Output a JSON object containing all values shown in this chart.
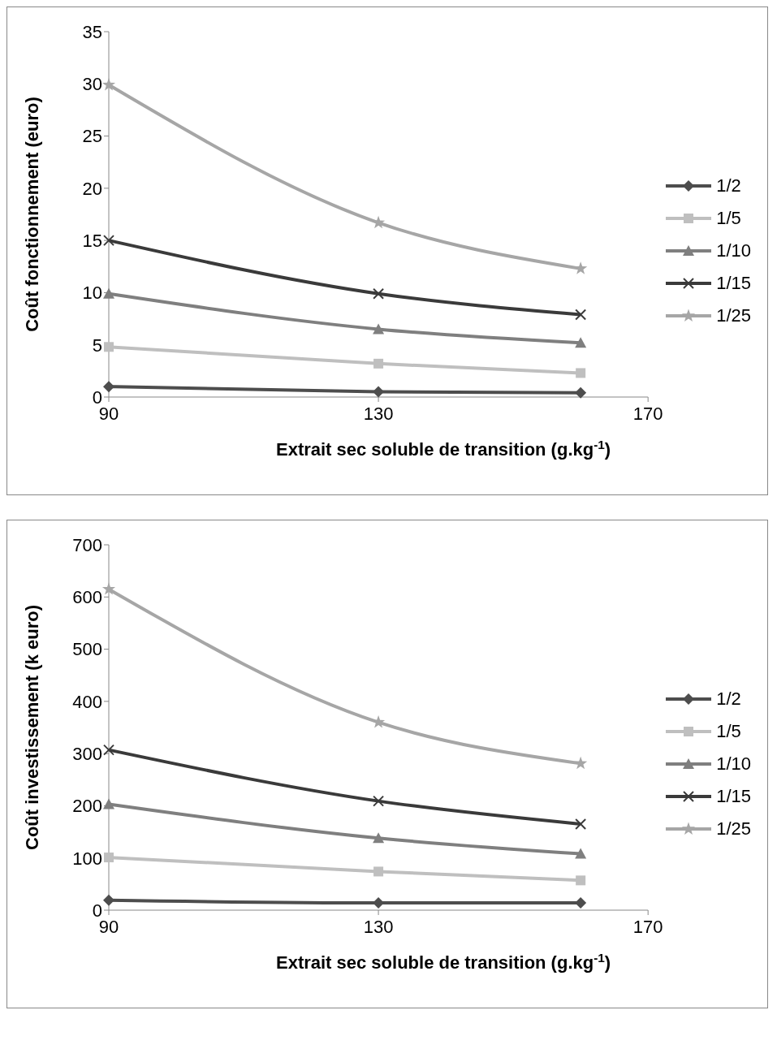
{
  "chart_data": [
    {
      "type": "line",
      "ylabel": "Coût fonctionnement (euro)",
      "xlabel": "Extrait sec soluble de transition (g.kg$^{-1}$)",
      "x": [
        90,
        130,
        160
      ],
      "xlim": [
        90,
        170
      ],
      "xticks": [
        90,
        130,
        170
      ],
      "ylim": [
        0,
        35
      ],
      "yticks": [
        0,
        5,
        10,
        15,
        20,
        25,
        30,
        35
      ],
      "legend": "right",
      "series": [
        {
          "name": "1/2",
          "color": "#4d4d4d",
          "marker": "diamond",
          "values": [
            1.0,
            0.5,
            0.4
          ]
        },
        {
          "name": "1/5",
          "color": "#bfbfbf",
          "marker": "square",
          "values": [
            4.8,
            3.2,
            2.3
          ]
        },
        {
          "name": "1/10",
          "color": "#7f7f7f",
          "marker": "triangle",
          "values": [
            9.9,
            6.5,
            5.2
          ]
        },
        {
          "name": "1/15",
          "color": "#3a3a3a",
          "marker": "cross",
          "values": [
            15,
            9.9,
            7.9
          ]
        },
        {
          "name": "1/25",
          "color": "#a6a6a6",
          "marker": "star",
          "values": [
            29.9,
            16.7,
            12.3
          ]
        }
      ]
    },
    {
      "type": "line",
      "ylabel": "Coût investissement (k euro)",
      "xlabel": "Extrait sec soluble de transition (g.kg$^{-1}$)",
      "x": [
        90,
        130,
        160
      ],
      "xlim": [
        90,
        170
      ],
      "xticks": [
        90,
        130,
        170
      ],
      "ylim": [
        0,
        700
      ],
      "yticks": [
        0,
        100,
        200,
        300,
        400,
        500,
        600,
        700
      ],
      "legend": "right",
      "series": [
        {
          "name": "1/2",
          "color": "#4d4d4d",
          "marker": "diamond",
          "values": [
            19,
            14,
            14
          ]
        },
        {
          "name": "1/5",
          "color": "#bfbfbf",
          "marker": "square",
          "values": [
            101,
            74,
            57
          ]
        },
        {
          "name": "1/10",
          "color": "#7f7f7f",
          "marker": "triangle",
          "values": [
            203,
            138,
            108
          ]
        },
        {
          "name": "1/15",
          "color": "#3a3a3a",
          "marker": "cross",
          "values": [
            307,
            209,
            165
          ]
        },
        {
          "name": "1/25",
          "color": "#a6a6a6",
          "marker": "star",
          "values": [
            615,
            360,
            281
          ]
        }
      ]
    }
  ]
}
